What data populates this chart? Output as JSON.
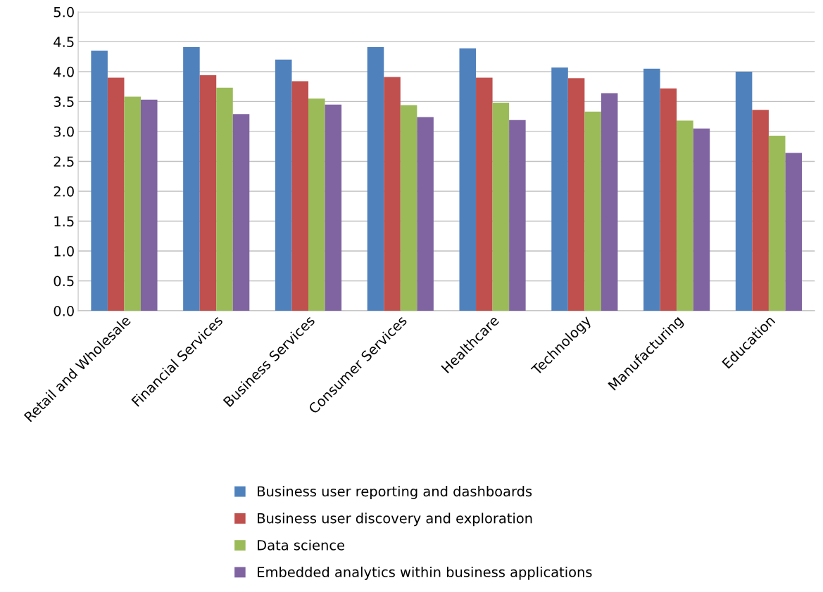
{
  "chart_data": {
    "type": "bar",
    "categories": [
      "Retail and Wholesale",
      "Financial Services",
      "Business Services",
      "Consumer Services",
      "Healthcare",
      "Technology",
      "Manufacturing",
      "Education"
    ],
    "series": [
      {
        "name": "Business user reporting and dashboards",
        "color": "#4f81bd",
        "values": [
          4.35,
          4.41,
          4.2,
          4.41,
          4.39,
          4.07,
          4.05,
          4.0
        ]
      },
      {
        "name": "Business user discovery and exploration",
        "color": "#c0504d",
        "values": [
          3.9,
          3.94,
          3.84,
          3.91,
          3.9,
          3.89,
          3.72,
          3.36
        ]
      },
      {
        "name": "Data science",
        "color": "#9bbb59",
        "values": [
          3.58,
          3.73,
          3.55,
          3.44,
          3.48,
          3.33,
          3.18,
          2.93
        ]
      },
      {
        "name": "Embedded analytics within business applications",
        "color": "#8064a2",
        "values": [
          3.53,
          3.29,
          3.45,
          3.24,
          3.19,
          3.64,
          3.05,
          2.64
        ]
      }
    ],
    "ylim": [
      0,
      5
    ],
    "yticks": [
      {
        "value": 0,
        "label": "0.0"
      },
      {
        "value": 0.5,
        "label": "0.5"
      },
      {
        "value": 1,
        "label": "1.0"
      },
      {
        "value": 1.5,
        "label": "1.5"
      },
      {
        "value": 2,
        "label": "2.0"
      },
      {
        "value": 2.5,
        "label": "2.5"
      },
      {
        "value": 3,
        "label": "3.0"
      },
      {
        "value": 3.5,
        "label": "3.5"
      },
      {
        "value": 4,
        "label": "4.0"
      },
      {
        "value": 4.5,
        "label": "4.5"
      },
      {
        "value": 5,
        "label": "5.0"
      }
    ],
    "grid": "y",
    "legend": "bottom"
  }
}
